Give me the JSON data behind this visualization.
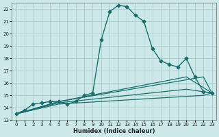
{
  "xlabel": "Humidex (Indice chaleur)",
  "ylabel": "",
  "background_color": "#cce8e8",
  "grid_color": "#aacccc",
  "line_color": "#1a6e6e",
  "xlim": [
    -0.5,
    23.5
  ],
  "ylim": [
    13,
    22.5
  ],
  "xticks": [
    0,
    1,
    2,
    3,
    4,
    5,
    6,
    7,
    8,
    9,
    10,
    11,
    12,
    13,
    14,
    15,
    16,
    17,
    18,
    19,
    20,
    21,
    22,
    23
  ],
  "yticks": [
    13,
    14,
    15,
    16,
    17,
    18,
    19,
    20,
    21,
    22
  ],
  "main_curve": {
    "x": [
      0,
      1,
      2,
      3,
      4,
      5,
      6,
      7,
      8,
      9,
      10,
      11,
      12,
      13,
      14,
      15,
      16,
      17,
      18,
      19,
      20,
      21,
      22,
      23
    ],
    "y": [
      13.5,
      13.8,
      14.3,
      14.4,
      14.5,
      14.5,
      14.3,
      14.5,
      15.0,
      15.2,
      19.5,
      21.8,
      22.3,
      22.2,
      21.5,
      21.0,
      18.8,
      17.8,
      17.5,
      17.3,
      18.0,
      16.5,
      15.3,
      15.2
    ],
    "marker": "D",
    "markersize": 2.5,
    "linewidth": 1.0
  },
  "extra_curves": [
    {
      "x": [
        0,
        5,
        22,
        23
      ],
      "y": [
        13.5,
        14.5,
        16.5,
        15.2
      ],
      "linewidth": 0.9
    },
    {
      "x": [
        0,
        5,
        20,
        23
      ],
      "y": [
        13.5,
        14.5,
        16.5,
        15.2
      ],
      "linewidth": 0.9
    },
    {
      "x": [
        0,
        5,
        20,
        23
      ],
      "y": [
        13.5,
        14.4,
        15.5,
        15.2
      ],
      "linewidth": 0.9
    },
    {
      "x": [
        0,
        5,
        22,
        23
      ],
      "y": [
        13.5,
        14.3,
        15.0,
        15.2
      ],
      "linewidth": 0.9
    }
  ]
}
